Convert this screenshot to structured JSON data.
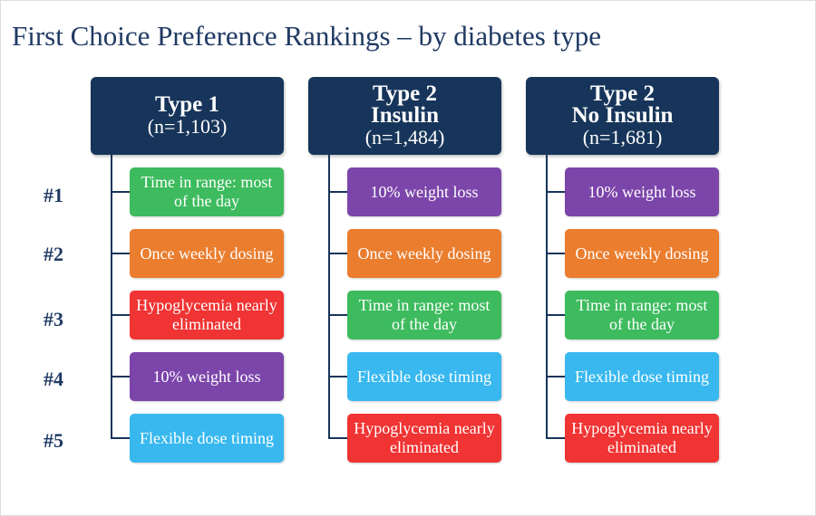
{
  "title": "First Choice Preference Rankings – by diabetes type",
  "ranks": [
    "#1",
    "#2",
    "#3",
    "#4",
    "#5"
  ],
  "colors": {
    "header": "#17355a",
    "green": "#3dbb5e",
    "orange": "#ea7d2e",
    "red": "#f03333",
    "purple": "#7c45aa",
    "blue": "#38b8ef"
  },
  "columns": [
    {
      "name": "Type 1",
      "n": "(n=1,103)",
      "items": [
        {
          "label": "Time in range: most of the day",
          "color": "#3dbb5e"
        },
        {
          "label": "Once weekly dosing",
          "color": "#ea7d2e"
        },
        {
          "label": "Hypoglycemia nearly eliminated",
          "color": "#f03333"
        },
        {
          "label": "10% weight loss",
          "color": "#7c45aa"
        },
        {
          "label": "Flexible dose timing",
          "color": "#38b8ef"
        }
      ]
    },
    {
      "name": "Type 2\nInsulin",
      "n": "(n=1,484)",
      "items": [
        {
          "label": "10% weight loss",
          "color": "#7c45aa"
        },
        {
          "label": "Once weekly dosing",
          "color": "#ea7d2e"
        },
        {
          "label": "Time in range: most of the day",
          "color": "#3dbb5e"
        },
        {
          "label": "Flexible dose timing",
          "color": "#38b8ef"
        },
        {
          "label": "Hypoglycemia nearly eliminated",
          "color": "#f03333"
        }
      ]
    },
    {
      "name": "Type 2\nNo Insulin",
      "n": "(n=1,681)",
      "items": [
        {
          "label": "10% weight loss",
          "color": "#7c45aa"
        },
        {
          "label": "Once weekly dosing",
          "color": "#ea7d2e"
        },
        {
          "label": "Time in range: most of the day",
          "color": "#3dbb5e"
        },
        {
          "label": "Flexible dose timing",
          "color": "#38b8ef"
        },
        {
          "label": "Hypoglycemia nearly eliminated",
          "color": "#f03333"
        }
      ]
    }
  ]
}
